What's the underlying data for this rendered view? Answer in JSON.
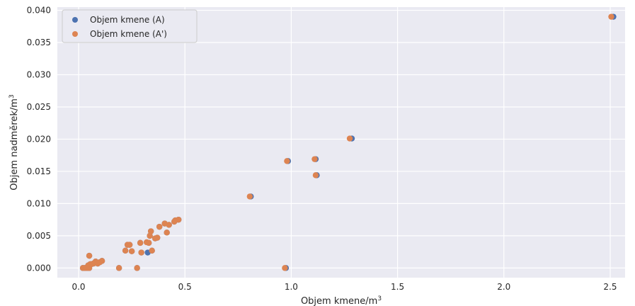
{
  "chart_data": {
    "type": "scatter",
    "xlabel": "Objem kmene/m",
    "xlabel_sup": "3",
    "ylabel": "Objem nadměrek/m",
    "ylabel_sup": "3",
    "xlim": [
      -0.1,
      2.57
    ],
    "ylim": [
      -0.0015,
      0.0405
    ],
    "x_ticks": [
      0.0,
      0.5,
      1.0,
      1.5,
      2.0,
      2.5
    ],
    "x_tick_labels": [
      "0.0",
      "0.5",
      "1.0",
      "1.5",
      "2.0",
      "2.5"
    ],
    "y_ticks": [
      0.0,
      0.005,
      0.01,
      0.015,
      0.02,
      0.025,
      0.03,
      0.035,
      0.04
    ],
    "y_tick_labels": [
      "0.000",
      "0.005",
      "0.010",
      "0.015",
      "0.020",
      "0.025",
      "0.030",
      "0.035",
      "0.040"
    ],
    "grid": true,
    "legend_position": "top-left",
    "colors": {
      "background": "#eaeaf2",
      "grid": "#ffffff",
      "series_a": "#4c72b0",
      "series_b": "#dd8452"
    },
    "series": [
      {
        "name": "Objem kmene (A)",
        "color": "#4c72b0",
        "points": [
          [
            0.02,
            0.0
          ],
          [
            0.03,
            0.0
          ],
          [
            0.04,
            0.0
          ],
          [
            0.045,
            0.0004
          ],
          [
            0.05,
            0.0
          ],
          [
            0.055,
            0.0006
          ],
          [
            0.05,
            0.0019
          ],
          [
            0.06,
            0.0006
          ],
          [
            0.07,
            0.0007
          ],
          [
            0.08,
            0.001
          ],
          [
            0.09,
            0.0007
          ],
          [
            0.1,
            0.0009
          ],
          [
            0.11,
            0.0011
          ],
          [
            0.19,
            0.0
          ],
          [
            0.22,
            0.0027
          ],
          [
            0.23,
            0.0036
          ],
          [
            0.24,
            0.0036
          ],
          [
            0.25,
            0.0026
          ],
          [
            0.275,
            0.0
          ],
          [
            0.29,
            0.0039
          ],
          [
            0.295,
            0.0024
          ],
          [
            0.325,
            0.0024
          ],
          [
            0.33,
            0.0039
          ],
          [
            0.335,
            0.005
          ],
          [
            0.34,
            0.0057
          ],
          [
            0.345,
            0.0027
          ],
          [
            0.36,
            0.0046
          ],
          [
            0.37,
            0.0047
          ],
          [
            0.38,
            0.0064
          ],
          [
            0.405,
            0.0069
          ],
          [
            0.415,
            0.0055
          ],
          [
            0.425,
            0.0067
          ],
          [
            0.45,
            0.0072
          ],
          [
            0.455,
            0.0074
          ],
          [
            0.47,
            0.0075
          ],
          [
            0.81,
            0.0111
          ],
          [
            0.975,
            0.0
          ],
          [
            0.985,
            0.0166
          ],
          [
            1.115,
            0.0169
          ],
          [
            1.12,
            0.0144
          ],
          [
            1.285,
            0.0201
          ],
          [
            2.515,
            0.039
          ]
        ]
      },
      {
        "name": "Objem kmene (A')",
        "color": "#dd8452",
        "points": [
          [
            0.02,
            0.0
          ],
          [
            0.03,
            0.0
          ],
          [
            0.04,
            0.0
          ],
          [
            0.045,
            0.0004
          ],
          [
            0.05,
            0.0
          ],
          [
            0.055,
            0.0006
          ],
          [
            0.05,
            0.0019
          ],
          [
            0.06,
            0.0006
          ],
          [
            0.07,
            0.0007
          ],
          [
            0.08,
            0.001
          ],
          [
            0.09,
            0.0007
          ],
          [
            0.1,
            0.0009
          ],
          [
            0.11,
            0.0011
          ],
          [
            0.19,
            0.0
          ],
          [
            0.22,
            0.0027
          ],
          [
            0.23,
            0.0036
          ],
          [
            0.24,
            0.0036
          ],
          [
            0.25,
            0.0026
          ],
          [
            0.275,
            0.0
          ],
          [
            0.29,
            0.0039
          ],
          [
            0.295,
            0.0024
          ],
          [
            0.32,
            0.004
          ],
          [
            0.33,
            0.0039
          ],
          [
            0.335,
            0.005
          ],
          [
            0.34,
            0.0057
          ],
          [
            0.345,
            0.0027
          ],
          [
            0.36,
            0.0046
          ],
          [
            0.37,
            0.0047
          ],
          [
            0.38,
            0.0064
          ],
          [
            0.405,
            0.0069
          ],
          [
            0.415,
            0.0055
          ],
          [
            0.425,
            0.0067
          ],
          [
            0.45,
            0.0072
          ],
          [
            0.455,
            0.0074
          ],
          [
            0.47,
            0.0075
          ],
          [
            0.805,
            0.0111
          ],
          [
            0.97,
            0.0
          ],
          [
            0.98,
            0.0166
          ],
          [
            1.11,
            0.0169
          ],
          [
            1.115,
            0.0144
          ],
          [
            1.275,
            0.0201
          ],
          [
            2.505,
            0.039
          ]
        ]
      }
    ]
  }
}
